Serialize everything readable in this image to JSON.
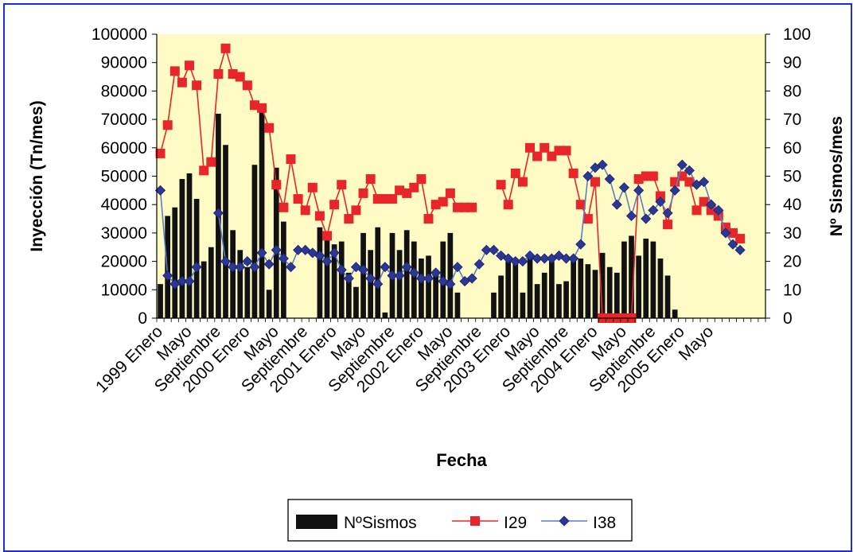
{
  "colors": {
    "background": "#ffffff",
    "plot_area": "#fefbc4",
    "frame": "#1c2fd6",
    "bars": "#111111",
    "i29": "#e8262a",
    "i38": "#2b3790",
    "i38_line": "#5a7fc4"
  },
  "chart_data": {
    "type": "bar",
    "title": "",
    "xlabel": "Fecha",
    "ylabel": "Inyección (Tn/mes)",
    "y2label": "Nº Sismos/mes",
    "ylim": [
      0,
      100000
    ],
    "y2lim": [
      0,
      100
    ],
    "yticks": [
      "0",
      "10000",
      "20000",
      "30000",
      "40000",
      "50000",
      "60000",
      "70000",
      "80000",
      "90000",
      "100000"
    ],
    "y2ticks": [
      "0",
      "10",
      "20",
      "30",
      "40",
      "50",
      "60",
      "70",
      "80",
      "90",
      "100"
    ],
    "grid": false,
    "legend_position": "bottom",
    "x_tick_labels": [
      {
        "index": 0,
        "label": "1999 Enero"
      },
      {
        "index": 4,
        "label": "Mayo"
      },
      {
        "index": 8,
        "label": "Septiembre"
      },
      {
        "index": 12,
        "label": "2000 Enero"
      },
      {
        "index": 16,
        "label": "Mayo"
      },
      {
        "index": 20,
        "label": "Septiembre"
      },
      {
        "index": 24,
        "label": "2001 Enero"
      },
      {
        "index": 28,
        "label": "Mayo"
      },
      {
        "index": 32,
        "label": "Septiembre"
      },
      {
        "index": 36,
        "label": "2002 Enero"
      },
      {
        "index": 40,
        "label": "Mayo"
      },
      {
        "index": 44,
        "label": "Septiembre"
      },
      {
        "index": 48,
        "label": "2003 Enero"
      },
      {
        "index": 52,
        "label": "Mayo"
      },
      {
        "index": 56,
        "label": "Septiembre"
      },
      {
        "index": 60,
        "label": "2004 Enero"
      },
      {
        "index": 64,
        "label": "Mayo"
      },
      {
        "index": 68,
        "label": "Septiembre"
      },
      {
        "index": 72,
        "label": "2005 Enero"
      },
      {
        "index": 76,
        "label": "Mayo"
      }
    ],
    "num_months": 84,
    "series": [
      {
        "name": "NºSismos",
        "type": "bar",
        "axis": "right",
        "values": [
          12,
          36,
          39,
          49,
          51,
          42,
          20,
          25,
          72,
          61,
          31,
          24,
          18,
          54,
          73,
          10,
          53,
          34,
          0,
          0,
          0,
          0,
          32,
          29,
          26,
          27,
          16,
          11,
          30,
          24,
          32,
          2,
          30,
          24,
          31,
          27,
          21,
          22,
          17,
          27,
          30,
          9,
          0,
          0,
          0,
          0,
          9,
          15,
          20,
          21,
          9,
          21,
          12,
          16,
          20,
          12,
          13,
          21,
          21,
          19,
          17,
          23,
          18,
          16,
          27,
          29,
          22,
          28,
          27,
          21,
          15,
          3,
          0,
          0,
          0,
          0,
          0,
          0,
          0,
          0,
          0,
          0,
          0,
          0
        ]
      },
      {
        "name": "I29",
        "type": "line",
        "axis": "left",
        "values": [
          58000,
          68000,
          87000,
          83000,
          89000,
          82000,
          52000,
          55000,
          86000,
          95000,
          86000,
          85000,
          82000,
          75000,
          74000,
          67000,
          47000,
          39000,
          56000,
          42000,
          38000,
          46000,
          36000,
          29000,
          40000,
          47000,
          35000,
          38000,
          44000,
          49000,
          42000,
          42000,
          42000,
          45000,
          44000,
          46000,
          49000,
          35000,
          40000,
          41000,
          44000,
          39000,
          39000,
          39000,
          null,
          null,
          null,
          47000,
          40000,
          51000,
          48000,
          60000,
          57000,
          60000,
          57000,
          59000,
          59000,
          51000,
          40000,
          35000,
          48000,
          0,
          0,
          0,
          0,
          0,
          49000,
          50000,
          50000,
          43000,
          33000,
          48000,
          50000,
          48000,
          38000,
          41000,
          38000,
          36000,
          32000,
          30000,
          28000,
          null,
          null,
          null
        ]
      },
      {
        "name": "I38",
        "type": "line",
        "axis": "left",
        "values": [
          45000,
          15000,
          12000,
          13000,
          13000,
          18000,
          null,
          null,
          37000,
          20000,
          18000,
          18000,
          20000,
          18000,
          23000,
          19000,
          24000,
          21000,
          18000,
          24000,
          24000,
          23000,
          22000,
          20000,
          23000,
          17000,
          14000,
          18000,
          17000,
          14000,
          12000,
          18000,
          15000,
          15000,
          18000,
          16000,
          14000,
          14000,
          16000,
          13000,
          12000,
          18000,
          13000,
          14000,
          19000,
          24000,
          24000,
          22000,
          21000,
          20000,
          20000,
          22000,
          21000,
          21000,
          21000,
          22000,
          21000,
          21000,
          26000,
          50000,
          53000,
          54000,
          49000,
          40000,
          46000,
          36000,
          45000,
          35000,
          38000,
          41000,
          37000,
          45000,
          54000,
          52000,
          47000,
          48000,
          40000,
          38000,
          30000,
          26000,
          24000,
          null,
          null,
          null
        ]
      }
    ]
  }
}
